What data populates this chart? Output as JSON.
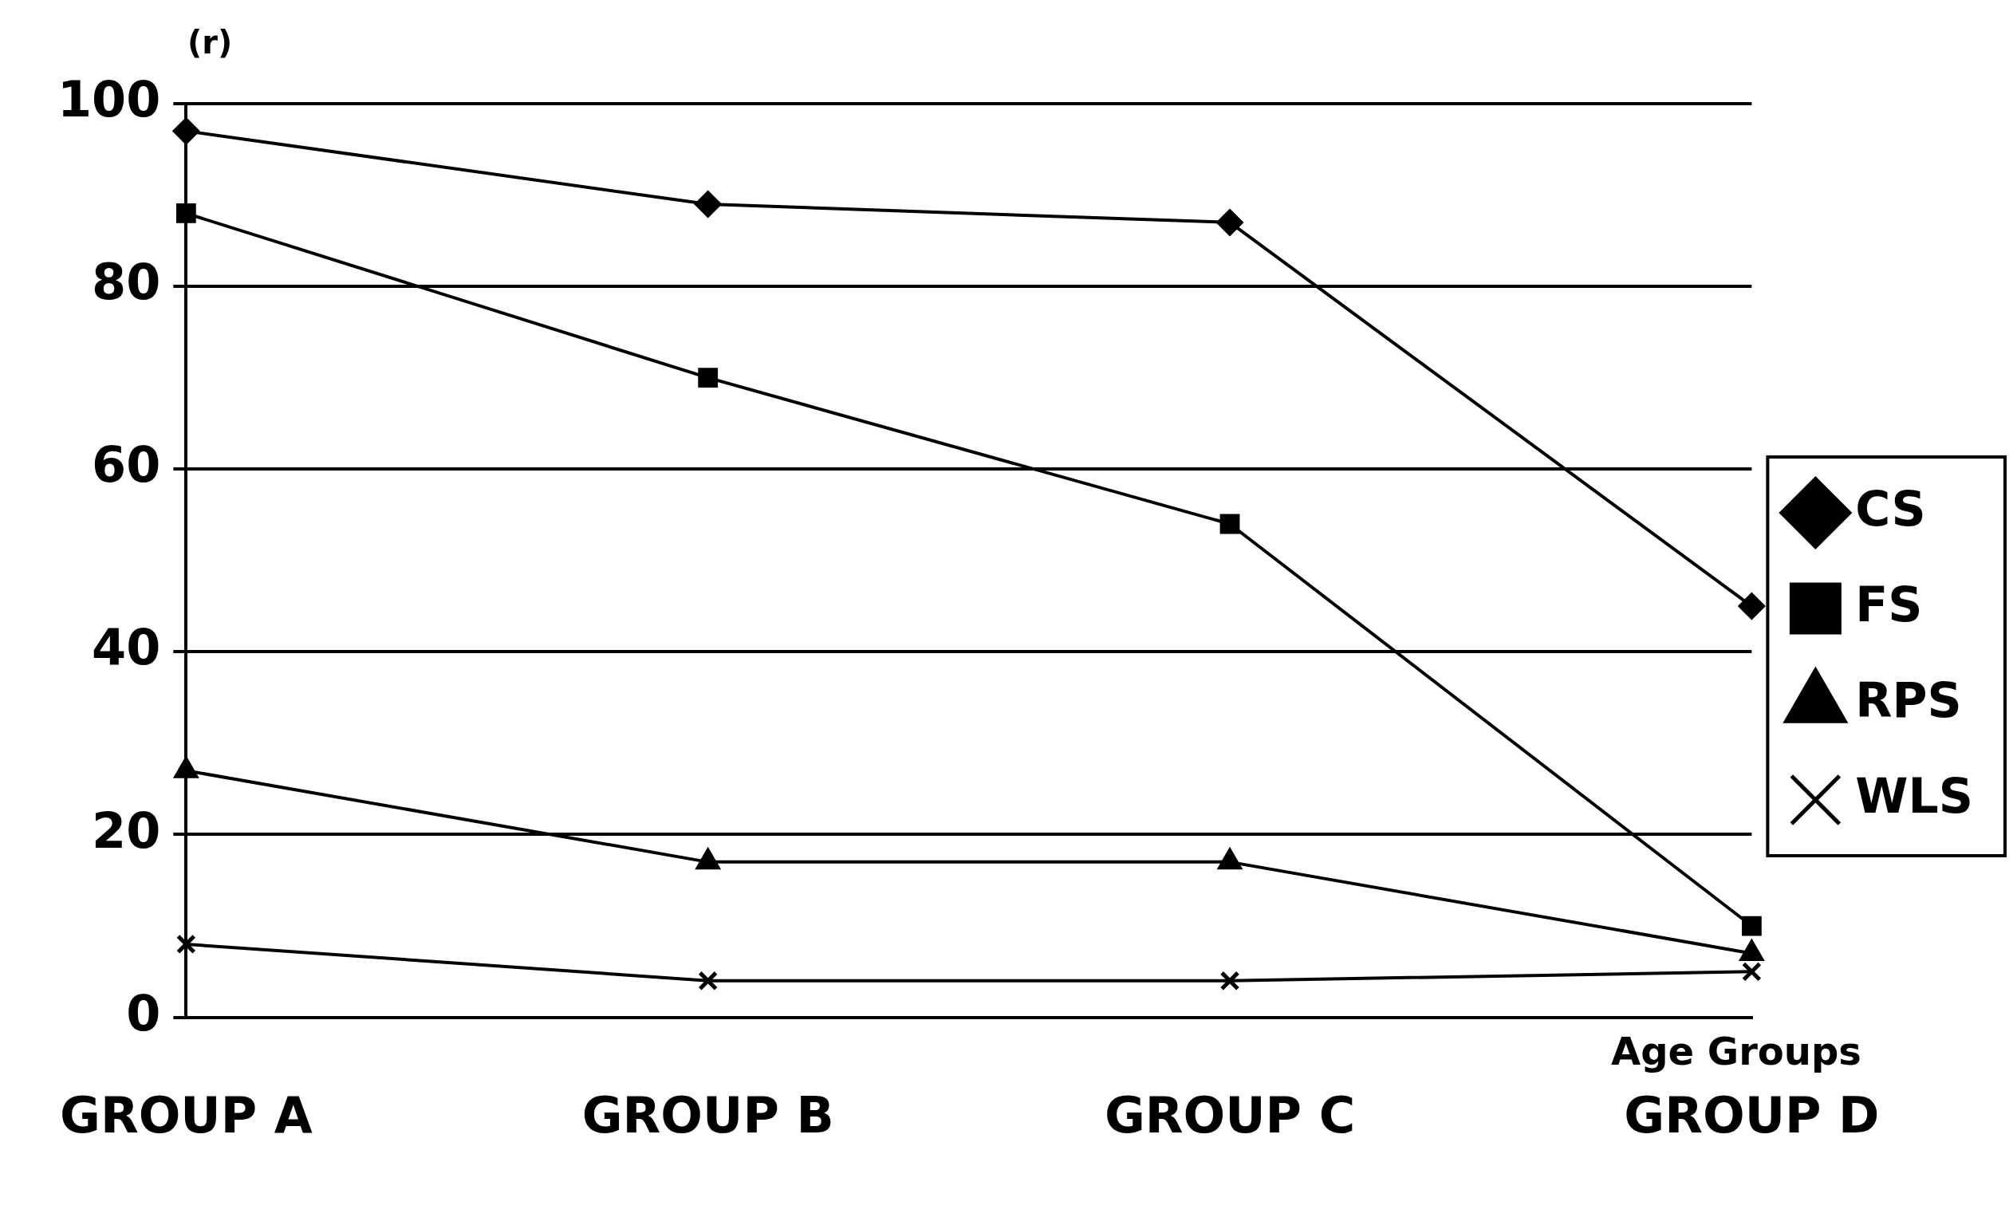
{
  "chart_data": {
    "type": "line",
    "xlabel": "Age Groups",
    "ylabel": "(r)",
    "categories": [
      "GROUP A",
      "GROUP B",
      "GROUP C",
      "GROUP D"
    ],
    "ylim": [
      0,
      100
    ],
    "yticks": [
      0,
      20,
      40,
      60,
      80,
      100
    ],
    "grid": "y",
    "legend": "right",
    "series": [
      {
        "name": "CS",
        "color": "#000000",
        "marker": "diamond",
        "values": [
          97,
          89,
          87,
          45
        ]
      },
      {
        "name": "FS",
        "color": "#000000",
        "marker": "square",
        "values": [
          88,
          70,
          54,
          10
        ]
      },
      {
        "name": "RPS",
        "color": "#000000",
        "marker": "triangle",
        "values": [
          27,
          17,
          17,
          7
        ]
      },
      {
        "name": "WLS",
        "color": "#000000",
        "marker": "cross",
        "values": [
          8,
          4,
          4,
          5
        ]
      }
    ]
  }
}
